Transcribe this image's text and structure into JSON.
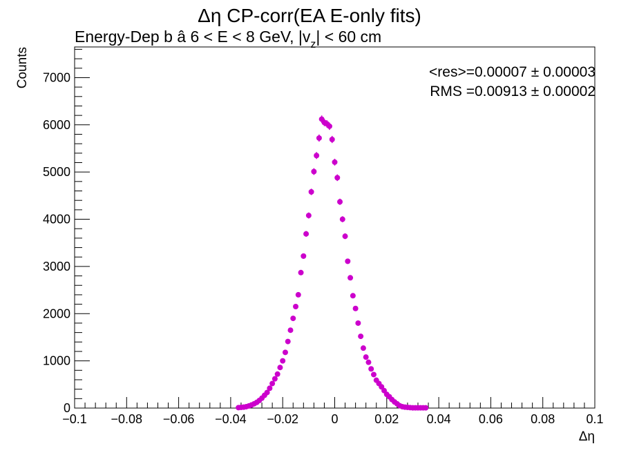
{
  "chart_data": {
    "type": "scatter",
    "title": "Δη CP-corr(EA E-only fits)",
    "subtitle_main": "Energy-Dep b   â   6 < E < 8 GeV, |v",
    "subtitle_sub": "z",
    "subtitle_tail": "| < 60 cm",
    "xlabel": "Δη",
    "ylabel": "Counts",
    "xlim": [
      -0.1,
      0.1
    ],
    "ylim": [
      0,
      7650
    ],
    "x_ticks": [
      "−0.1",
      "−0.08",
      "−0.06",
      "−0.04",
      "−0.02",
      "0",
      "0.02",
      "0.04",
      "0.06",
      "0.08",
      "0.1"
    ],
    "y_ticks": [
      "0",
      "1000",
      "2000",
      "3000",
      "4000",
      "5000",
      "6000",
      "7000"
    ],
    "annotations": {
      "res": "<res>=0.00007 ± 0.00003",
      "rms": "RMS =0.00913 ± 0.00002"
    },
    "grid": false,
    "marker_color": "#cc00cc",
    "series": [
      {
        "x": [
          -0.037,
          -0.036,
          -0.035,
          -0.034,
          -0.033,
          -0.032,
          -0.031,
          -0.03,
          -0.029,
          -0.028,
          -0.027,
          -0.026,
          -0.025,
          -0.024,
          -0.023,
          -0.022,
          -0.021,
          -0.02,
          -0.019,
          -0.018,
          -0.017,
          -0.016,
          -0.015,
          -0.014,
          -0.013,
          -0.012,
          -0.011,
          -0.01,
          -0.009,
          -0.008,
          -0.007,
          -0.006,
          -0.005,
          -0.004,
          -0.003,
          -0.002,
          -0.001,
          0.0,
          0.001,
          0.002,
          0.003,
          0.004,
          0.005,
          0.006,
          0.007,
          0.008,
          0.009,
          0.01,
          0.011,
          0.012,
          0.013,
          0.014,
          0.015,
          0.016,
          0.017,
          0.018,
          0.019,
          0.02,
          0.021,
          0.022,
          0.023,
          0.024,
          0.025,
          0.026,
          0.027,
          0.028,
          0.029,
          0.03,
          0.031,
          0.032,
          0.033,
          0.034,
          0.035
        ],
        "y": [
          10,
          15,
          20,
          30,
          45,
          65,
          90,
          120,
          160,
          210,
          270,
          330,
          420,
          520,
          620,
          720,
          860,
          1000,
          1180,
          1410,
          1650,
          1900,
          2150,
          2400,
          2870,
          3220,
          3690,
          4080,
          4580,
          5010,
          5350,
          5720,
          6120,
          6050,
          6020,
          5970,
          5690,
          5210,
          4880,
          4370,
          4000,
          3640,
          3110,
          2760,
          2380,
          2110,
          1800,
          1520,
          1270,
          1080,
          970,
          830,
          710,
          590,
          520,
          450,
          370,
          290,
          240,
          180,
          130,
          90,
          50,
          30,
          20,
          15,
          10,
          5,
          5,
          5,
          5,
          5,
          5
        ]
      }
    ]
  }
}
